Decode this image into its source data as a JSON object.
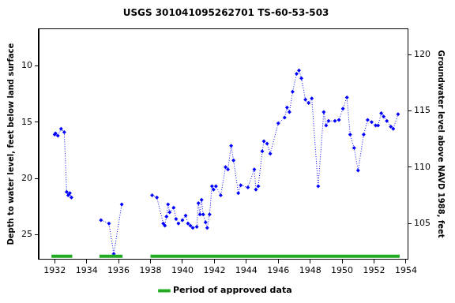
{
  "chart_data": {
    "type": "line",
    "title": "USGS 301041095262701 TS-60-53-503",
    "x_label": null,
    "y_label": "Depth to water level, feet below land surface",
    "y2_label": "Groundwater level above NAVD 1988, feet",
    "xlim": [
      1931.0,
      1954.1
    ],
    "xticks": [
      1932,
      1934,
      1936,
      1938,
      1940,
      1942,
      1944,
      1946,
      1948,
      1950,
      1952,
      1954
    ],
    "ylim": [
      27.2,
      6.7
    ],
    "yticks": [
      10,
      15,
      20,
      25
    ],
    "y2lim": [
      101.8,
      122.3
    ],
    "y2ticks": [
      105,
      110,
      115,
      120
    ],
    "grid": false,
    "legend": "bottom",
    "series": [
      {
        "color": "#0000ff",
        "marker": "diamond",
        "line_style": "dotted",
        "x": [
          1932.0,
          1932.05,
          1932.2,
          1932.4,
          1932.6,
          1932.75,
          1932.85,
          1932.95,
          1933.05
        ],
        "values": [
          16.1,
          16.0,
          16.2,
          15.6,
          15.9,
          21.2,
          21.5,
          21.3,
          21.7
        ]
      },
      {
        "color": "#0000ff",
        "marker": "diamond",
        "line_style": "dotted",
        "x": [
          1934.9,
          1935.4,
          1935.7,
          1936.2
        ],
        "values": [
          23.7,
          24.0,
          26.7,
          22.3
        ]
      },
      {
        "color": "#0000ff",
        "marker": "diamond",
        "line_style": "dotted",
        "x": [
          1938.1,
          1938.4,
          1938.8,
          1938.9,
          1939.0,
          1939.1,
          1939.2,
          1939.45,
          1939.6,
          1939.75,
          1940.0,
          1940.2,
          1940.35,
          1940.5,
          1940.65,
          1940.9,
          1941.0,
          1941.1,
          1941.2,
          1941.3,
          1941.45,
          1941.55,
          1941.7,
          1941.85,
          1941.95,
          1942.1,
          1942.4,
          1942.7,
          1942.85,
          1943.05,
          1943.2,
          1943.5,
          1943.65,
          1944.1,
          1944.5,
          1944.6,
          1944.75,
          1945.0,
          1945.1,
          1945.3,
          1945.5,
          1946.0,
          1946.4,
          1946.55,
          1946.7,
          1946.9,
          1947.15,
          1947.3,
          1947.45,
          1947.7,
          1947.9,
          1948.1,
          1948.5,
          1948.85,
          1949.0,
          1949.15,
          1949.55,
          1949.8,
          1950.05,
          1950.3,
          1950.5,
          1950.75,
          1951.0,
          1951.35,
          1951.6,
          1951.85,
          1952.1,
          1952.25,
          1952.45,
          1952.6,
          1952.8,
          1953.05,
          1953.2,
          1953.5
        ],
        "values": [
          21.5,
          21.7,
          24.0,
          24.2,
          23.4,
          22.3,
          23.0,
          22.6,
          23.6,
          24.0,
          23.7,
          23.3,
          24.0,
          24.2,
          24.4,
          24.3,
          22.2,
          23.2,
          21.9,
          23.2,
          23.9,
          24.4,
          23.2,
          20.7,
          21.0,
          20.7,
          21.5,
          19.0,
          19.2,
          17.1,
          18.4,
          21.3,
          20.6,
          20.8,
          19.2,
          21.0,
          20.7,
          17.6,
          16.7,
          16.9,
          17.8,
          15.1,
          14.6,
          13.7,
          14.1,
          12.3,
          10.7,
          10.4,
          11.1,
          13.0,
          13.3,
          12.9,
          20.7,
          14.1,
          15.3,
          14.9,
          14.9,
          14.8,
          13.8,
          12.8,
          16.1,
          17.3,
          19.3,
          16.1,
          14.8,
          15.0,
          15.3,
          15.3,
          14.2,
          14.5,
          14.9,
          15.4,
          15.6,
          14.3
        ]
      }
    ],
    "approved_periods": {
      "label": "Period of approved data",
      "color": "#22aa22",
      "ranges": [
        [
          1931.8,
          1933.1
        ],
        [
          1934.8,
          1936.25
        ],
        [
          1938.0,
          1953.6
        ]
      ]
    }
  }
}
